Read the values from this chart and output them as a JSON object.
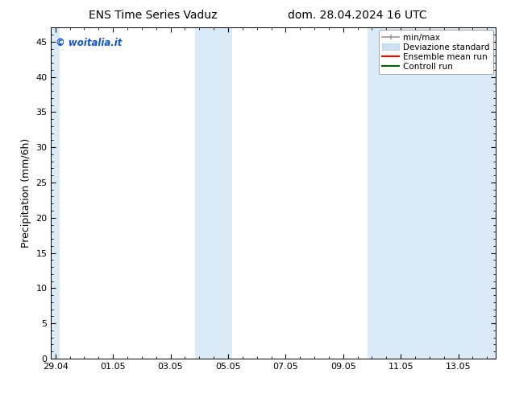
{
  "title_left": "ENS Time Series Vaduz",
  "title_right": "dom. 28.04.2024 16 UTC",
  "ylabel": "Precipitation (mm/6h)",
  "ylim": [
    0,
    47
  ],
  "yticks": [
    0,
    5,
    10,
    15,
    20,
    25,
    30,
    35,
    40,
    45
  ],
  "xtick_labels": [
    "29.04",
    "01.05",
    "03.05",
    "05.05",
    "07.05",
    "09.05",
    "11.05",
    "13.05"
  ],
  "xtick_positions": [
    0,
    2,
    4,
    6,
    8,
    10,
    12,
    14
  ],
  "xlim": [
    -0.15,
    15.3
  ],
  "shaded_bands": [
    {
      "x_start": -0.15,
      "x_end": 0.15
    },
    {
      "x_start": 4.85,
      "x_end": 6.15
    },
    {
      "x_start": 10.85,
      "x_end": 15.3
    }
  ],
  "background_color": "#ffffff",
  "band_color": "#dbeaf7",
  "watermark_text": "© woitalia.it",
  "watermark_color": "#1155cc",
  "title_fontsize": 10,
  "tick_fontsize": 8,
  "ylabel_fontsize": 9,
  "legend_fontsize": 7.5
}
